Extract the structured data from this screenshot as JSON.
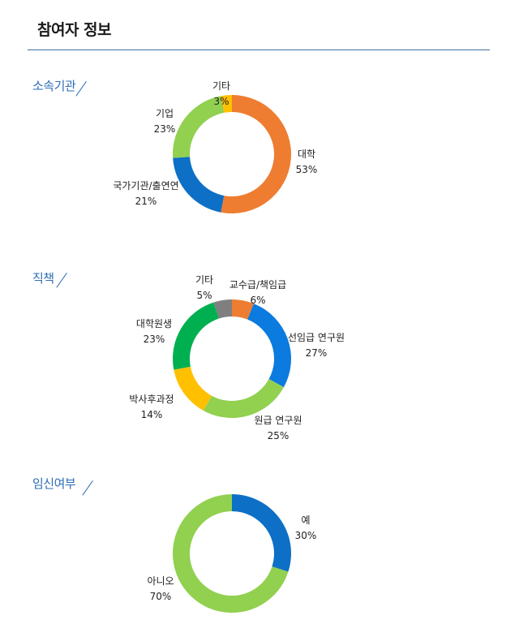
{
  "page": {
    "title": "참여자 정보"
  },
  "chart_data": [
    {
      "type": "pie",
      "subtitle": "소속기관",
      "slices": [
        {
          "label": "대학",
          "value": 53,
          "value_label": "53%",
          "color": "#ee7d31"
        },
        {
          "label": "국가기관/출연연",
          "value": 21,
          "value_label": "21%",
          "color": "#0d6fc6"
        },
        {
          "label": "기업",
          "value": 23,
          "value_label": "23%",
          "color": "#92d050"
        },
        {
          "label": "기타",
          "value": 3,
          "value_label": "3%",
          "color": "#ffc000"
        }
      ]
    },
    {
      "type": "pie",
      "subtitle": "직책",
      "slices": [
        {
          "label": "교수급/책임급",
          "value": 6,
          "value_label": "6%",
          "color": "#ee7d31"
        },
        {
          "label": "선임급 연구원",
          "value": 27,
          "value_label": "27%",
          "color": "#0b7bdf"
        },
        {
          "label": "원급 연구원",
          "value": 25,
          "value_label": "25%",
          "color": "#92d050"
        },
        {
          "label": "박사후과정",
          "value": 14,
          "value_label": "14%",
          "color": "#ffc000"
        },
        {
          "label": "대학원생",
          "value": 23,
          "value_label": "23%",
          "color": "#00b050"
        },
        {
          "label": "기타",
          "value": 5,
          "value_label": "5%",
          "color": "#7f7f7f"
        }
      ]
    },
    {
      "type": "pie",
      "subtitle": "임신여부",
      "slices": [
        {
          "label": "예",
          "value": 30,
          "value_label": "30%",
          "color": "#0d6fc6"
        },
        {
          "label": "아니오",
          "value": 70,
          "value_label": "70%",
          "color": "#92d050"
        }
      ]
    }
  ]
}
